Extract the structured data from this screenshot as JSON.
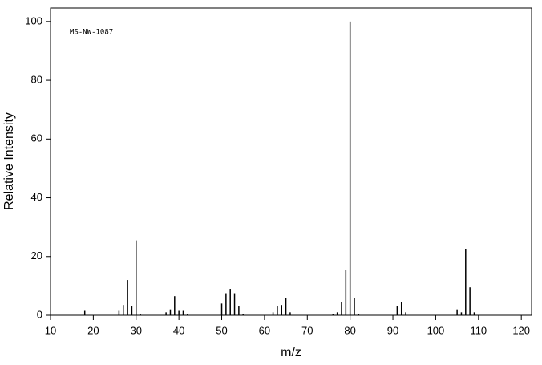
{
  "chart_data": {
    "type": "bar",
    "annotation": "MS-NW-1087",
    "x_label": "m/z",
    "y_label": "Relative Intensity",
    "x": [
      18,
      26,
      27,
      28,
      29,
      30,
      31,
      37,
      38,
      39,
      40,
      41,
      42,
      50,
      51,
      52,
      53,
      54,
      55,
      62,
      63,
      64,
      65,
      66,
      76,
      77,
      78,
      79,
      80,
      81,
      82,
      91,
      92,
      93,
      105,
      106,
      107,
      108,
      109
    ],
    "values": [
      1.5,
      1.5,
      3.5,
      12,
      3,
      25.5,
      0.5,
      1,
      2,
      6.5,
      1.5,
      1.5,
      0.5,
      4,
      7.5,
      9,
      7.5,
      3,
      0.5,
      1,
      3,
      3.5,
      6,
      1,
      0.5,
      1,
      4.5,
      15.5,
      100,
      6,
      0.5,
      3,
      4.5,
      1,
      2,
      1,
      22.5,
      9.5,
      1
    ],
    "color": "#000000",
    "xlim": [
      10,
      122.4
    ],
    "ylim": [
      0,
      104.6
    ],
    "xticks": [
      10,
      20,
      30,
      40,
      50,
      60,
      70,
      80,
      90,
      100,
      110,
      120
    ],
    "yticks": [
      0,
      20,
      40,
      60,
      80,
      100
    ]
  }
}
